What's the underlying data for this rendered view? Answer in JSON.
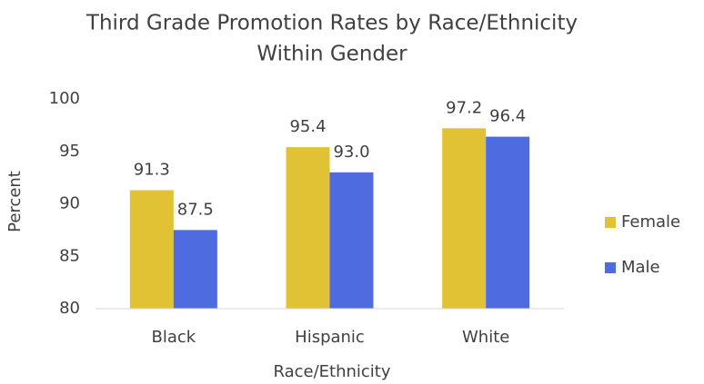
{
  "chart_data": {
    "type": "bar",
    "title": [
      "Third Grade Promotion Rates by Race/Ethnicity",
      "Within Gender"
    ],
    "x_label": "Race/Ethnicity",
    "y_label": "Percent",
    "categories": [
      "Black",
      "Hispanic",
      "White"
    ],
    "series": [
      {
        "name": "Female",
        "color": "#e0c234",
        "values": [
          91.3,
          95.4,
          97.2
        ]
      },
      {
        "name": "Male",
        "color": "#4f6be0",
        "values": [
          87.5,
          93,
          96.4
        ],
        "value_labels": [
          "87.5",
          "93.0",
          "96.4"
        ]
      }
    ],
    "ylim": [
      80,
      100
    ],
    "yticks": [
      80,
      85,
      90,
      95,
      100
    ],
    "grid": false,
    "legend": "right"
  }
}
